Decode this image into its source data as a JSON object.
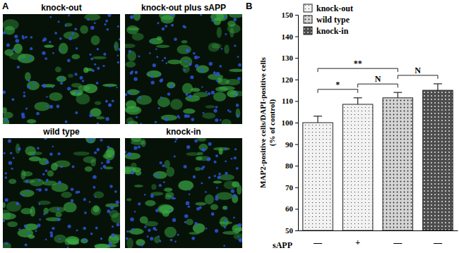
{
  "panel_a": {
    "label": "A",
    "images": [
      "knock-out",
      "knock-out plus sAPP",
      "wild type",
      "knock-in"
    ]
  },
  "panel_b": {
    "label": "B"
  },
  "chart_data": {
    "type": "bar",
    "xlabel": "sAPP",
    "ylabel": "MAP2-positive cells/DAPI-positive cells (% of control)",
    "categories": [
      "—",
      "+",
      "—",
      "—"
    ],
    "series": [
      {
        "name": "knock-out",
        "color": "#f2f2f2",
        "values": [
          100,
          108.5,
          null,
          null
        ],
        "errors": [
          3,
          3,
          null,
          null
        ]
      },
      {
        "name": "wild type",
        "color": "#d4d4d4",
        "values": [
          null,
          null,
          111.5,
          null
        ],
        "errors": [
          null,
          null,
          2.5,
          null
        ]
      },
      {
        "name": "knock-in",
        "color": "#4d4d4d",
        "values": [
          null,
          null,
          null,
          115
        ],
        "errors": [
          null,
          null,
          null,
          3
        ]
      }
    ],
    "ylim": [
      50,
      150
    ],
    "yticks": [
      50,
      60,
      70,
      80,
      90,
      100,
      110,
      120,
      130,
      140,
      150
    ],
    "legend": "upper left",
    "annotations": [
      {
        "text": "*",
        "from": 0,
        "to": 1
      },
      {
        "text": "**",
        "from": 0,
        "to": 2
      },
      {
        "text": "N",
        "from": 1,
        "to": 2
      },
      {
        "text": "N",
        "from": 2,
        "to": 3
      }
    ]
  }
}
